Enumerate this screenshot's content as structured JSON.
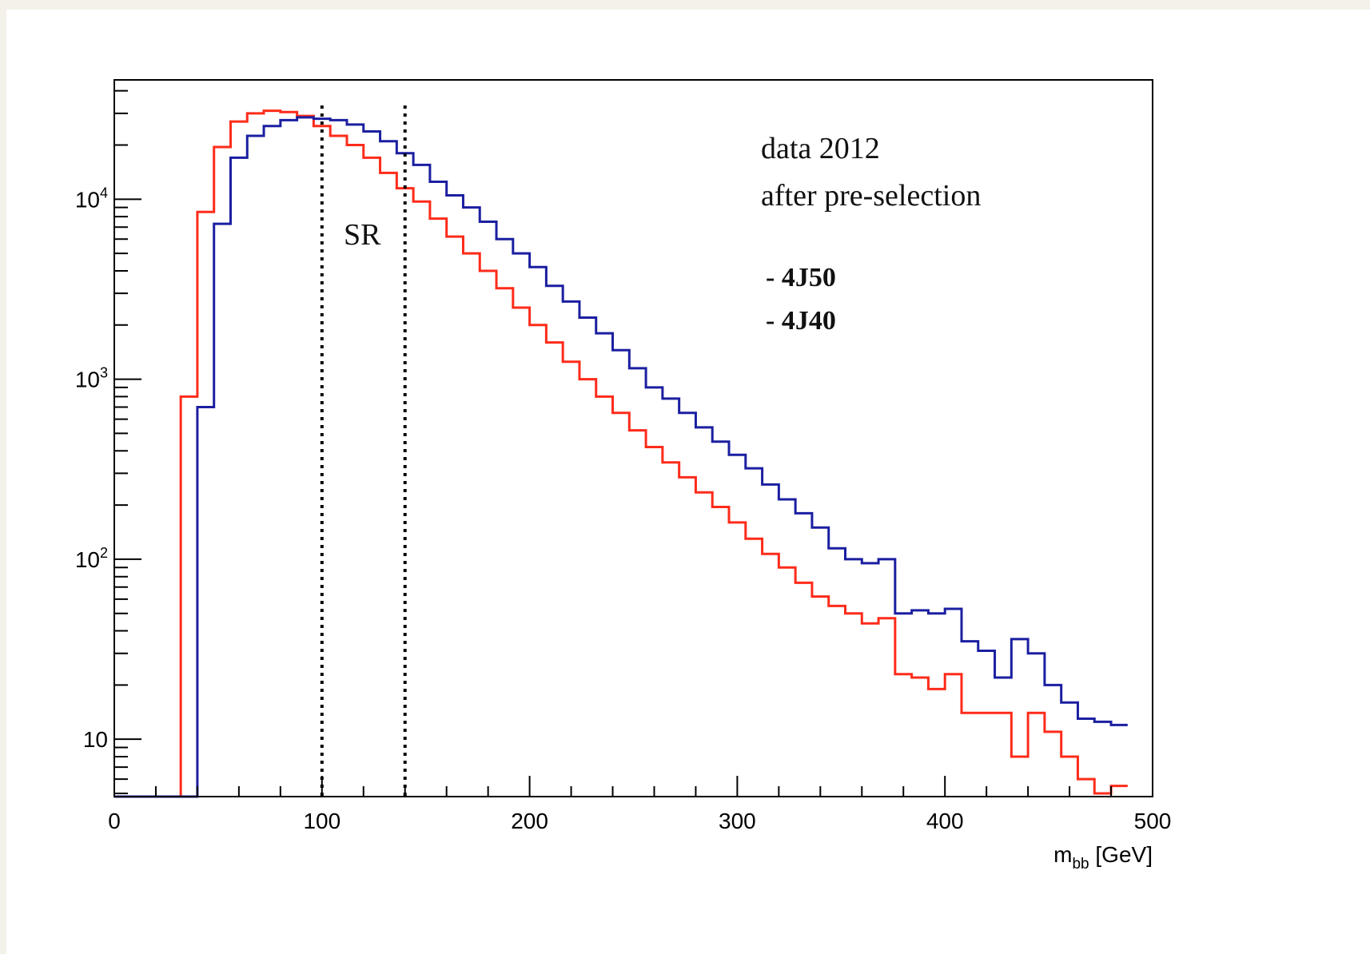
{
  "chart_data": {
    "type": "histogram-step",
    "title": "",
    "xlabel": "m_bb [GeV]",
    "xlabel_main": "m",
    "xlabel_sub": "bb",
    "xlabel_unit": "[GeV]",
    "ylabel": "",
    "xlim": [
      0,
      500
    ],
    "ylim": [
      4.8,
      46000
    ],
    "yscale": "log",
    "grid": false,
    "x_tick_labels": [
      "0",
      "100",
      "200",
      "300",
      "400",
      "500"
    ],
    "x_tick_values": [
      0,
      100,
      200,
      300,
      400,
      500
    ],
    "y_tick_labels": [
      {
        "base": "10",
        "exp": "4",
        "value": 10000
      },
      {
        "base": "10",
        "exp": "3",
        "value": 1000
      },
      {
        "base": "10",
        "exp": "2",
        "value": 100
      },
      {
        "base": "10",
        "exp": "",
        "value": 10
      }
    ],
    "bin_width": 8,
    "bin_edges_start": 0,
    "series": [
      {
        "name": "- 4J50",
        "color": "#1b1fa0",
        "values": [
          0,
          0,
          0,
          0,
          0,
          700,
          7300,
          17000,
          22500,
          25500,
          27500,
          28500,
          28000,
          27500,
          26000,
          23800,
          21000,
          18000,
          15500,
          12500,
          10500,
          9000,
          7500,
          6000,
          5000,
          4200,
          3300,
          2700,
          2200,
          1800,
          1450,
          1150,
          900,
          780,
          650,
          540,
          450,
          380,
          320,
          260,
          215,
          180,
          150,
          115,
          100,
          95,
          100,
          50,
          52,
          50,
          53,
          35,
          31,
          22,
          36,
          30,
          20,
          16,
          13,
          12.5,
          12
        ]
      },
      {
        "name": "- 4J40",
        "color": "#ff2b1a",
        "values": [
          0,
          0,
          0,
          0,
          800,
          8500,
          19500,
          27000,
          30000,
          31000,
          30500,
          29000,
          25500,
          22500,
          20000,
          17000,
          14000,
          11500,
          9700,
          7800,
          6200,
          5000,
          4000,
          3200,
          2500,
          2000,
          1600,
          1250,
          1000,
          800,
          650,
          520,
          420,
          345,
          285,
          235,
          195,
          160,
          130,
          107,
          90,
          74,
          62,
          55,
          50,
          44,
          47,
          23,
          22,
          19,
          23,
          14,
          14,
          14,
          8,
          14,
          11,
          8,
          6,
          5,
          5.5
        ]
      }
    ],
    "reference_lines": [
      {
        "x": 100,
        "style": "dotted"
      },
      {
        "x": 140,
        "style": "dotted"
      }
    ],
    "annotations": {
      "region_label": "SR",
      "info_line1": "data 2012",
      "info_line2": "after pre-selection",
      "legend_placement": "top-right"
    }
  }
}
